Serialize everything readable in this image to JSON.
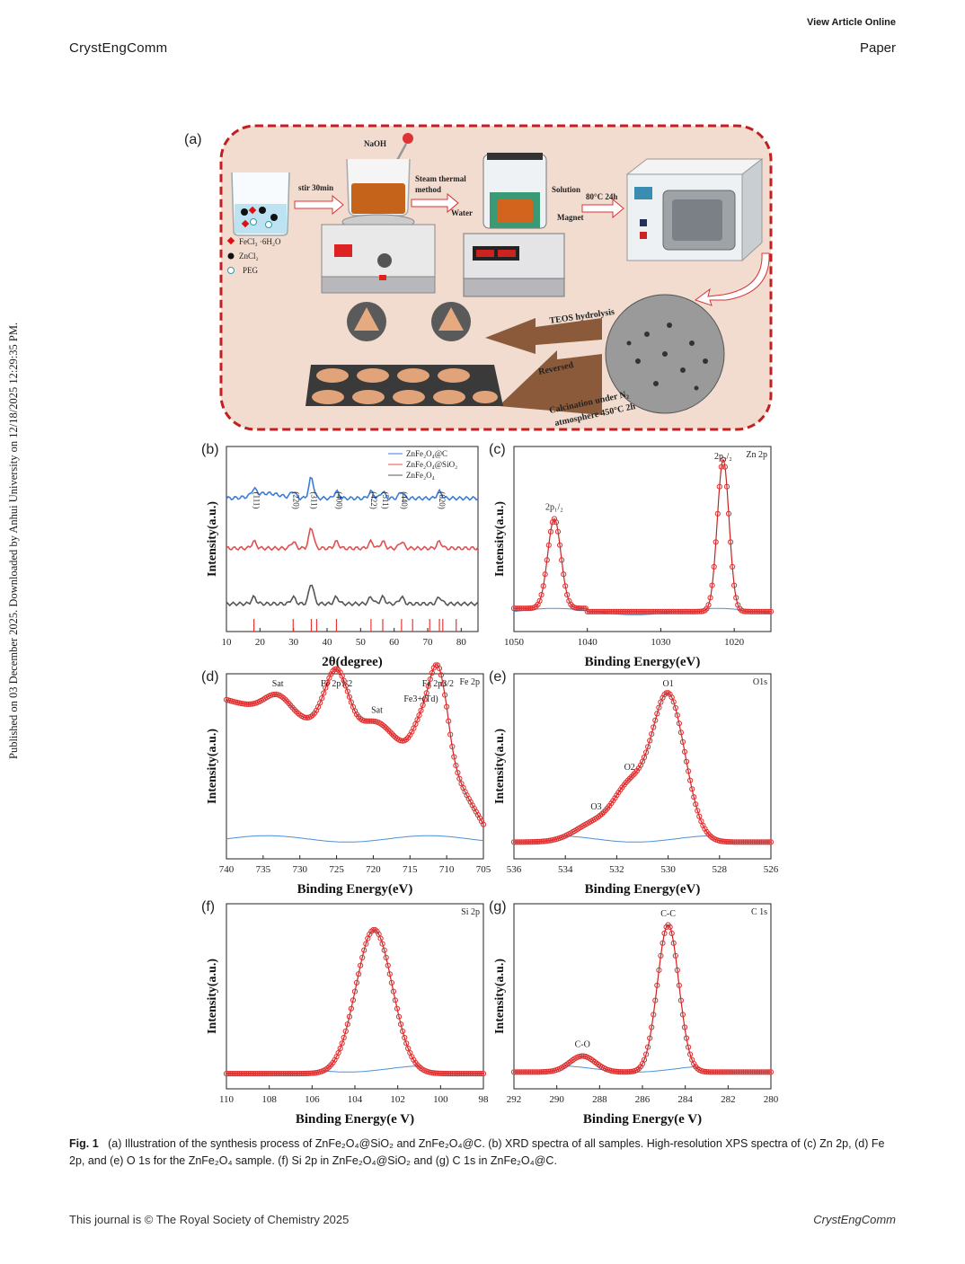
{
  "header": {
    "view_online": "View Article Online",
    "journal": "CrystEngComm",
    "section": "Paper"
  },
  "side_note": "Published on 03 December 2025. Downloaded by Anhui University on 12/18/2025 12:29:35 PM.",
  "caption": {
    "label": "Fig. 1",
    "text": "(a) Illustration of the synthesis process of ZnFe₂O₄@SiO₂ and ZnFe₂O₄@C. (b) XRD spectra of all samples. High-resolution XPS spectra of (c) Zn 2p, (d) Fe 2p, and (e) O 1s for the ZnFe₂O₄ sample. (f) Si 2p in ZnFe₂O₄@SiO₂ and (g) C 1s in ZnFe₂O₄@C."
  },
  "footer": {
    "left": "This journal is © The Royal Society of Chemistry 2025",
    "right": "CrystEngComm"
  },
  "scheme": {
    "panel": "(a)",
    "labels": {
      "naoh": "NaOH",
      "stir": "stir 30min",
      "steam": "Steam thermal",
      "method": "method",
      "solution": "Solution",
      "water": "Water",
      "magnet": "Magnet",
      "oven": "80°C 24h",
      "legend_fe": "FeCl₃ ·6H₂O",
      "legend_zn": "ZnCl₂",
      "legend_peg": "PEG",
      "teos": "TEOS hydrolysis",
      "reverse": "Reversed",
      "calc1": "Calcination under N₂",
      "calc2": "atmosphere 450°C 2h"
    }
  },
  "chart_data": [
    {
      "panel": "(b)",
      "type": "line",
      "xlabel": "2θ(degree)",
      "ylabel": "Intensity(a.u.)",
      "xlim": [
        10,
        85
      ],
      "xticks": [
        10,
        20,
        30,
        40,
        50,
        60,
        70,
        80
      ],
      "legend": [
        "ZnFe₂O₄@C",
        "ZnFe₂O₄@SiO₂",
        "ZnFe₂O₄"
      ],
      "colors": [
        "#3b7dd8",
        "#e05050",
        "#555555"
      ],
      "peaks": [
        {
          "hkl": "(111)",
          "x": 18.2
        },
        {
          "hkl": "(220)",
          "x": 29.9
        },
        {
          "hkl": "(311)",
          "x": 35.3
        },
        {
          "hkl": "(400)",
          "x": 42.8
        },
        {
          "hkl": "(422)",
          "x": 53.1
        },
        {
          "hkl": "(511)",
          "x": 56.6
        },
        {
          "hkl": "(440)",
          "x": 62.2
        },
        {
          "hkl": "(620)",
          "x": 73.5
        }
      ],
      "reference_lines": [
        18.2,
        29.9,
        35.3,
        36.9,
        42.8,
        53.1,
        56.6,
        62.2,
        65.5,
        70.6,
        73.5,
        74.5,
        78.5
      ]
    },
    {
      "panel": "(c)",
      "type": "scatter",
      "title": "Zn 2p",
      "xlabel": "Binding Energy(eV)",
      "ylabel": "Intensity(a.u.)",
      "xlim": [
        1050,
        1015
      ],
      "xticks": [
        1050,
        1040,
        1030,
        1020
      ],
      "peaks": [
        {
          "label": "2p₁/₂",
          "x": 1044.5,
          "height": 0.56
        },
        {
          "label": "2p₃/₂",
          "x": 1021.5,
          "height": 1.0
        }
      ],
      "annotations": [
        "Zn²⁺",
        "Zn²⁺"
      ]
    },
    {
      "panel": "(d)",
      "type": "scatter",
      "title": "Fe 2p",
      "xlabel": "Binding Energy(eV)",
      "ylabel": "Intensity(a.u.)",
      "xlim": [
        740,
        705
      ],
      "xticks": [
        740,
        735,
        730,
        725,
        720,
        715,
        710,
        705
      ],
      "annotations": [
        "Sat",
        "Fe³⁺",
        "Fe 2p₁/₂",
        "Sat",
        "Fe³⁺(Tₐ)",
        "Fe³⁺(Oₕ)",
        "Fe 2p₃/₂"
      ],
      "peaks": [
        {
          "label": "Sat",
          "x": 733
        },
        {
          "label": "Fe 2p1/2",
          "x": 725
        },
        {
          "label": "Sat",
          "x": 719.5
        },
        {
          "label": "Fe3+(Td)",
          "x": 713.5
        },
        {
          "label": "Fe 2p3/2",
          "x": 711.2
        }
      ]
    },
    {
      "panel": "(e)",
      "type": "scatter",
      "title": "O1s",
      "xlabel": "Binding Energy(eV)",
      "ylabel": "Intensity(a.u.)",
      "xlim": [
        536,
        526
      ],
      "xticks": [
        536,
        534,
        532,
        530,
        528,
        526
      ],
      "components": [
        {
          "name": "O1",
          "x": 530.0
        },
        {
          "name": "O2",
          "x": 531.5
        },
        {
          "name": "O3",
          "x": 532.8
        }
      ]
    },
    {
      "panel": "(f)",
      "type": "scatter",
      "title": "Si 2p",
      "xlabel": "Binding Energy(e V)",
      "ylabel": "Intensity(a.u.)",
      "xlim": [
        110,
        98
      ],
      "xticks": [
        110,
        108,
        106,
        104,
        102,
        100,
        98
      ],
      "peaks": [
        {
          "x": 103.1
        }
      ]
    },
    {
      "panel": "(g)",
      "type": "scatter",
      "title": "C 1s",
      "xlabel": "Binding Energy(e V)",
      "ylabel": "Intensity(a.u.)",
      "xlim": [
        292,
        280
      ],
      "xticks": [
        292,
        290,
        288,
        286,
        284,
        282,
        280
      ],
      "components": [
        {
          "name": "C-C",
          "x": 284.8
        },
        {
          "name": "C-O",
          "x": 288.8
        }
      ]
    }
  ]
}
